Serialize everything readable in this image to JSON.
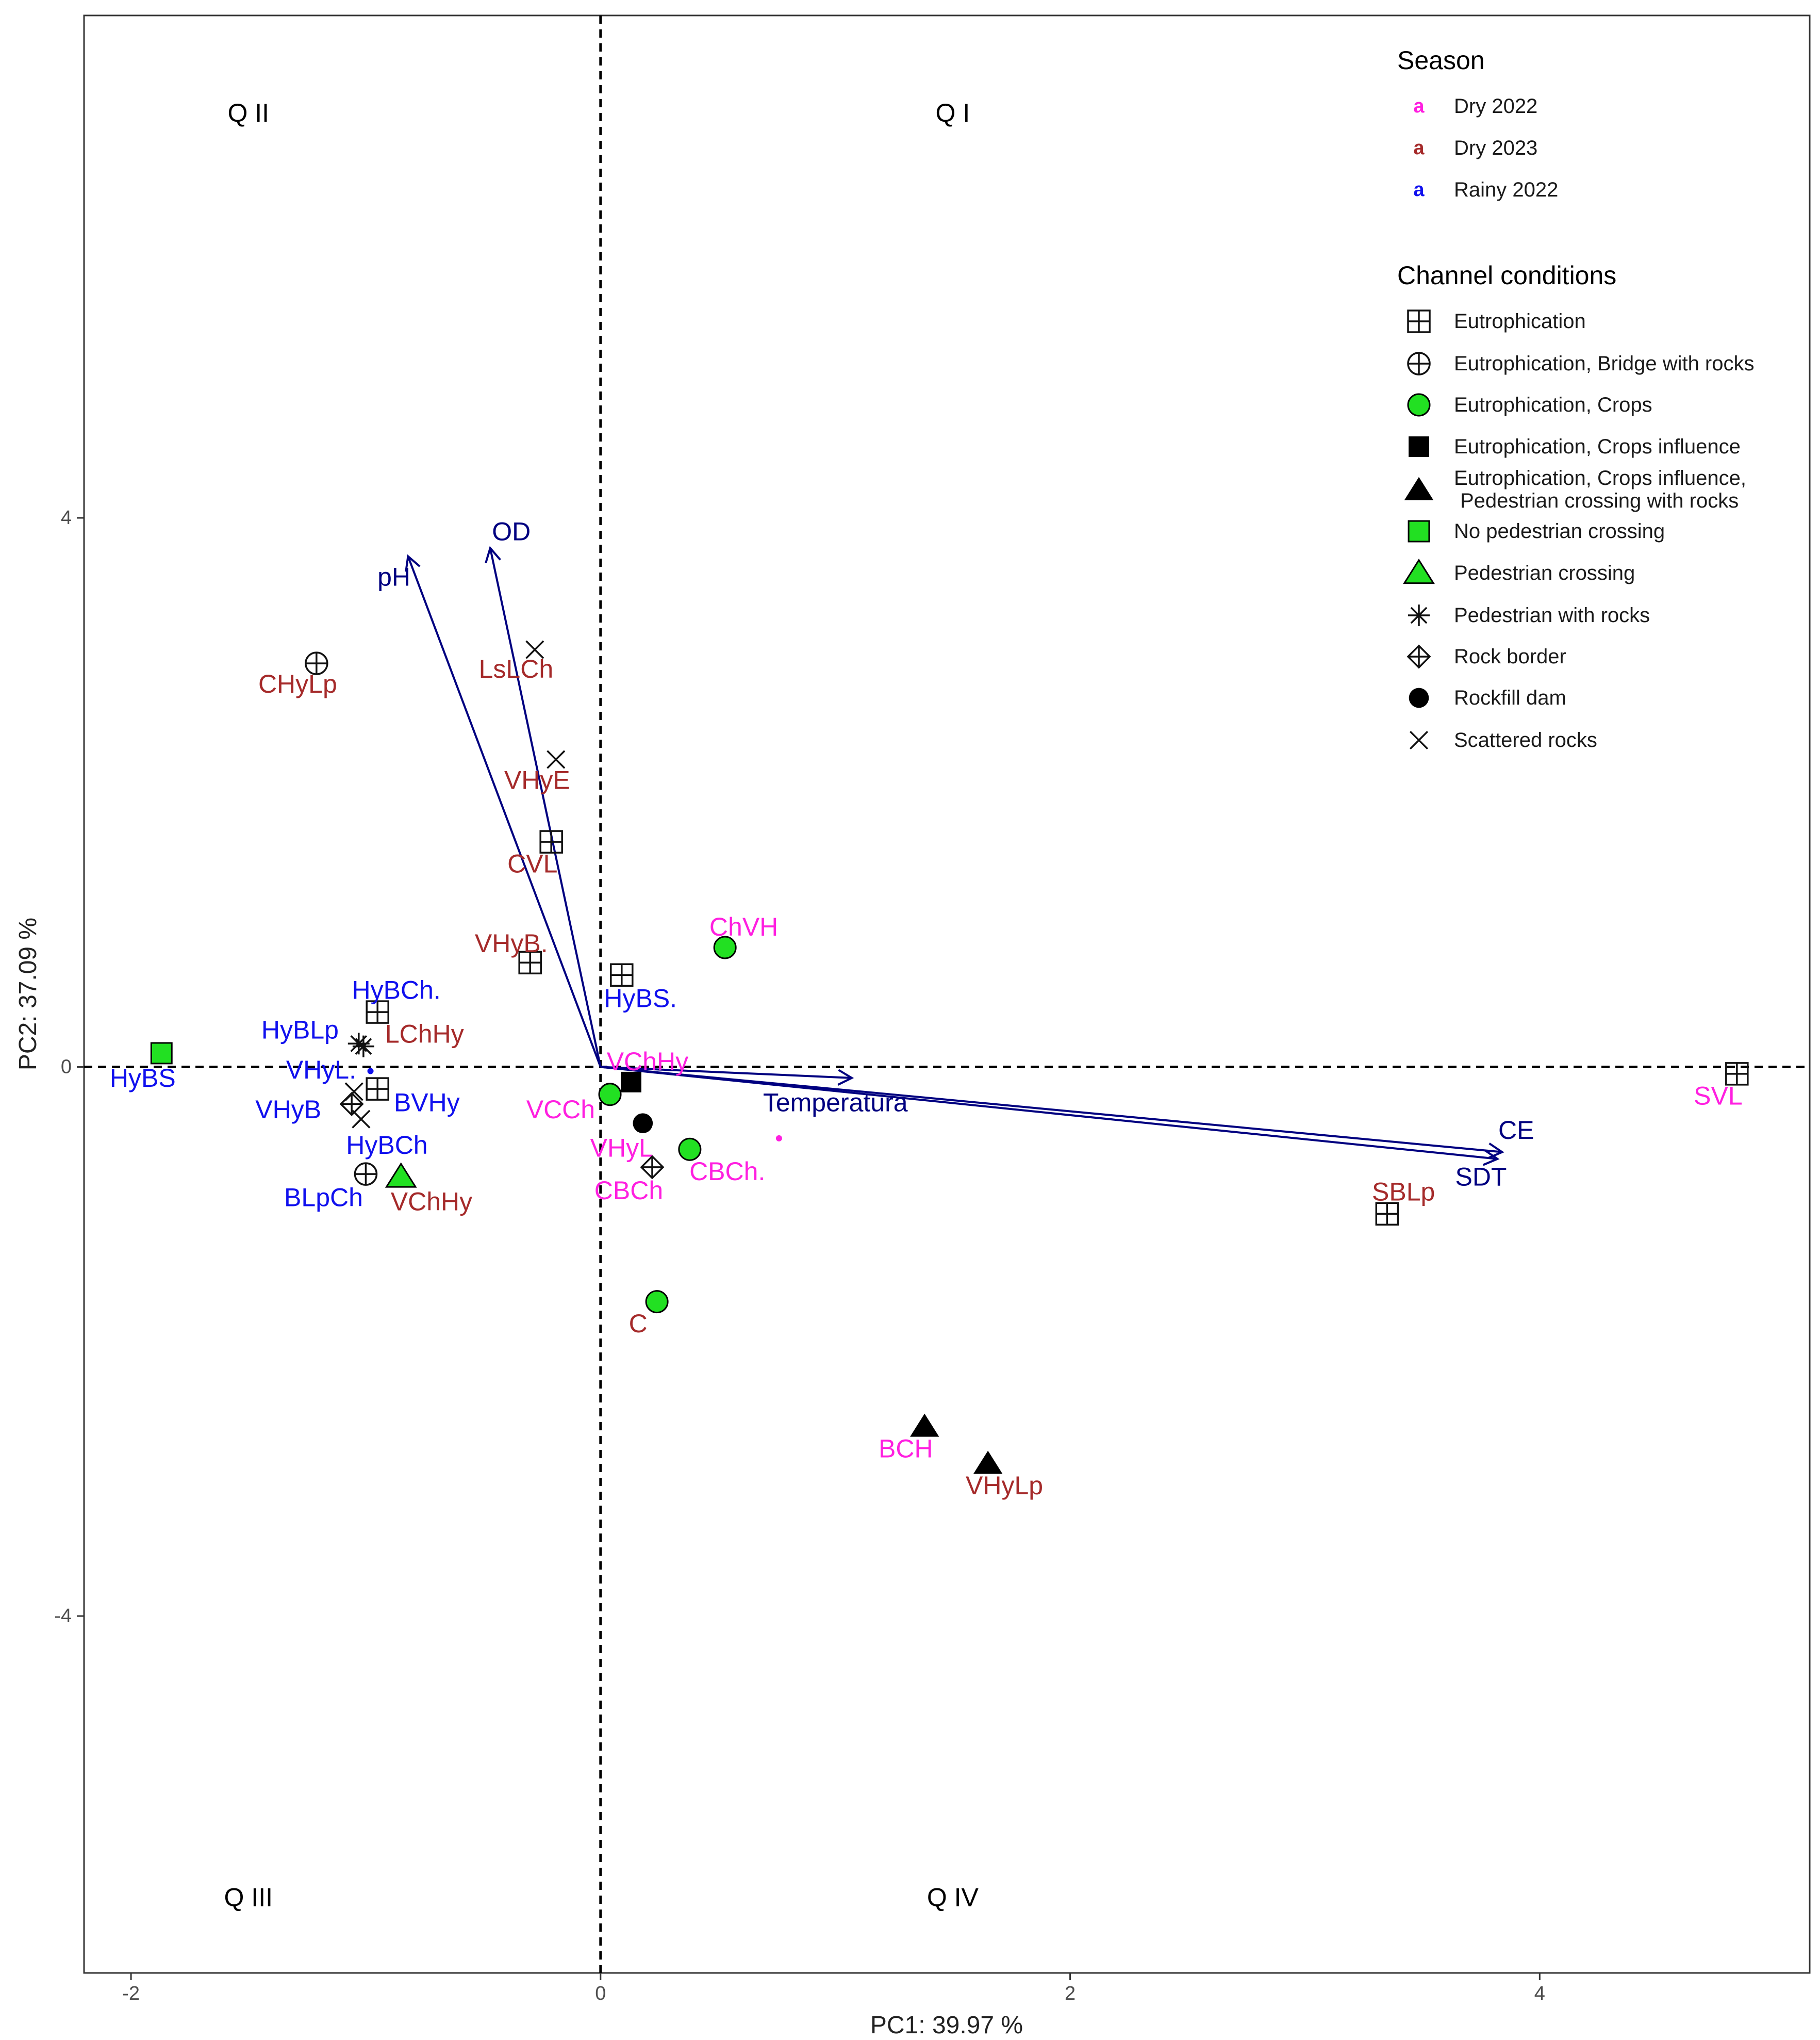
{
  "chart_data": {
    "type": "scatter",
    "subtype": "pca-biplot",
    "xlabel": "PC1: 39.97 %",
    "ylabel": "PC2: 37.09 %",
    "xlim": [
      -2.2,
      5.15
    ],
    "ylim": [
      -6.6,
      7.66
    ],
    "x_ticks": [
      -2,
      0,
      2,
      4
    ],
    "y_ticks": [
      -4,
      0,
      4
    ],
    "x_tick_labels": [
      "-2",
      "0",
      "2",
      "4"
    ],
    "y_tick_labels": [
      "-4",
      "0",
      "4"
    ],
    "grid": false,
    "reference_lines": {
      "x": 0,
      "y": 0,
      "style": "dashed"
    },
    "quadrants": [
      {
        "label": "Q I",
        "x": 1.5,
        "y": 6.95
      },
      {
        "label": "Q II",
        "x": -1.5,
        "y": 6.95
      },
      {
        "label": "Q III",
        "x": -1.5,
        "y": -6.05
      },
      {
        "label": "Q IV",
        "x": 1.5,
        "y": -6.05
      }
    ],
    "legend_position": "top-right",
    "season_legend": {
      "title": "Season",
      "glyph": "a",
      "entries": [
        {
          "name": "Dry 2022",
          "color": "#ff1fe0"
        },
        {
          "name": "Dry 2023",
          "color": "#a52a2a"
        },
        {
          "name": "Rainy 2022",
          "color": "#1010ee"
        }
      ]
    },
    "condition_legend": {
      "title": "Channel conditions",
      "entries": [
        {
          "name": "Eutrophication",
          "shape": "square-plus"
        },
        {
          "name": "Eutrophication, Bridge with rocks",
          "shape": "circle-plus"
        },
        {
          "name": "Eutrophication, Crops",
          "shape": "circle-green"
        },
        {
          "name": "Eutrophication, Crops influence",
          "shape": "square-filled"
        },
        {
          "name": "Eutrophication, Crops influence,",
          "name_line2": "Pedestrian crossing with rocks",
          "shape": "triangle-filled"
        },
        {
          "name": "No pedestrian crossing",
          "shape": "square-green"
        },
        {
          "name": "Pedestrian crossing",
          "shape": "triangle-green"
        },
        {
          "name": "Pedestrian with rocks",
          "shape": "asterisk"
        },
        {
          "name": "Rock border",
          "shape": "diamond-plus"
        },
        {
          "name": "Rockfill dam",
          "shape": "circle-filled"
        },
        {
          "name": "Scattered rocks",
          "shape": "cross"
        }
      ]
    },
    "loadings": [
      {
        "name": "pH",
        "x": -0.82,
        "y": 3.72,
        "label_x": -0.88,
        "label_y": 3.57
      },
      {
        "name": "OD",
        "x": -0.47,
        "y": 3.78,
        "label_x": -0.38,
        "label_y": 3.9
      },
      {
        "name": "Temperatura",
        "x": 1.07,
        "y": -0.08,
        "label_x": 1.0,
        "label_y": -0.26
      },
      {
        "name": "CE",
        "x": 3.84,
        "y": -0.62,
        "label_x": 3.9,
        "label_y": -0.46
      },
      {
        "name": "SDT",
        "x": 3.82,
        "y": -0.67,
        "label_x": 3.75,
        "label_y": -0.8
      }
    ],
    "points": [
      {
        "label": "CHyLp",
        "season": "Dry 2023",
        "condition": "Eutrophication, Bridge with rocks",
        "x": -1.21,
        "y": 2.94,
        "label_x": -1.29,
        "label_y": 2.79
      },
      {
        "label": "LsLCh",
        "season": "Dry 2023",
        "condition": "Scattered rocks",
        "x": -0.28,
        "y": 3.04,
        "label_x": -0.36,
        "label_y": 2.9
      },
      {
        "name": "",
        "label": "VHyE",
        "season": "Dry 2023",
        "condition": "Scattered rocks",
        "x": -0.19,
        "y": 2.24,
        "label_x": -0.27,
        "label_y": 2.09
      },
      {
        "label": "CVL",
        "season": "Dry 2023",
        "condition": "Eutrophication",
        "x": -0.21,
        "y": 1.64,
        "label_x": -0.29,
        "label_y": 1.48
      },
      {
        "label": "VHyB.",
        "season": "Dry 2023",
        "condition": "Eutrophication",
        "x": -0.3,
        "y": 0.76,
        "label_x": -0.38,
        "label_y": 0.9
      },
      {
        "label": "HyBS.",
        "season": "Rainy 2022",
        "condition": "Eutrophication",
        "x": 0.09,
        "y": 0.67,
        "label_x": 0.17,
        "label_y": 0.5
      },
      {
        "label": "ChVH",
        "season": "Dry 2022",
        "condition": "Eutrophication, Crops",
        "x": 0.53,
        "y": 0.87,
        "label_x": 0.61,
        "label_y": 1.02
      },
      {
        "label": "HyBCh.",
        "season": "Rainy 2022",
        "condition": "Eutrophication",
        "x": -0.95,
        "y": 0.4,
        "label_x": -0.87,
        "label_y": 0.56
      },
      {
        "label": "HyBLp",
        "season": "Rainy 2022",
        "condition": "Pedestrian with rocks",
        "x": -1.03,
        "y": 0.17,
        "label_x": -1.28,
        "label_y": 0.27
      },
      {
        "label": "LChHy",
        "season": "Dry 2023",
        "condition": "Pedestrian with rocks",
        "x": -1.01,
        "y": 0.15,
        "label_x": -0.75,
        "label_y": 0.24
      },
      {
        "label": "HyBS",
        "season": "Rainy 2022",
        "condition": "No pedestrian crossing",
        "x": -1.87,
        "y": 0.1,
        "label_x": -1.95,
        "label_y": -0.08
      },
      {
        "label": "VHyL.",
        "season": "Rainy 2022",
        "condition": "Scattered rocks",
        "x": -1.05,
        "y": -0.18,
        "label_x": -1.19,
        "label_y": -0.02
      },
      {
        "label": "BVHy",
        "season": "Rainy 2022",
        "condition": "Eutrophication",
        "x": -0.95,
        "y": -0.16,
        "label_x": -0.74,
        "label_y": -0.26
      },
      {
        "label": "VHyB",
        "season": "Rainy 2022",
        "condition": "Rock border",
        "x": -1.06,
        "y": -0.27,
        "label_x": -1.33,
        "label_y": -0.31
      },
      {
        "label": "HyBCh",
        "season": "Rainy 2022",
        "condition": "Scattered rocks",
        "x": -1.02,
        "y": -0.38,
        "label_x": -0.91,
        "label_y": -0.57
      },
      {
        "label": "BLpCh",
        "season": "Rainy 2022",
        "condition": "Eutrophication, Bridge with rocks",
        "x": -1.0,
        "y": -0.78,
        "label_x": -1.18,
        "label_y": -0.95
      },
      {
        "label": "VChHy",
        "season": "Dry 2023",
        "condition": "Pedestrian crossing",
        "x": -0.85,
        "y": -0.8,
        "label_x": -0.72,
        "label_y": -0.98
      },
      {
        "label": "VChHy",
        "season": "Dry 2022",
        "condition": "",
        "x": 0.02,
        "y": 0.0,
        "label_x": 0.2,
        "label_y": 0.04
      },
      {
        "label": "VCCh",
        "season": "Dry 2022",
        "condition": "Eutrophication, Crops",
        "x": 0.04,
        "y": -0.2,
        "label_x": -0.17,
        "label_y": -0.31
      },
      {
        "label": "",
        "season": "",
        "condition": "Eutrophication, Crops influence",
        "x": 0.13,
        "y": -0.11,
        "label_x": 0.13,
        "label_y": -0.11
      },
      {
        "label": "VHyL",
        "season": "Dry 2022",
        "condition": "Rockfill dam",
        "x": 0.18,
        "y": -0.41,
        "label_x": 0.09,
        "label_y": -0.59
      },
      {
        "label": "CBCh.",
        "season": "Dry 2022",
        "condition": "Eutrophication, Crops",
        "x": 0.38,
        "y": -0.6,
        "label_x": 0.54,
        "label_y": -0.76
      },
      {
        "label": "CBCh",
        "season": "Dry 2022",
        "condition": "Rock border",
        "x": 0.22,
        "y": -0.73,
        "label_x": 0.12,
        "label_y": -0.9
      },
      {
        "label": "SVL",
        "season": "Dry 2022",
        "condition": "Eutrophication",
        "x": 4.84,
        "y": -0.05,
        "label_x": 4.76,
        "label_y": -0.21
      },
      {
        "label": "SBLp",
        "season": "Dry 2023",
        "condition": "Eutrophication",
        "x": 3.35,
        "y": -1.07,
        "label_x": 3.42,
        "label_y": -0.91
      },
      {
        "label": "C",
        "season": "Dry 2023",
        "condition": "Eutrophication, Crops",
        "x": 0.24,
        "y": -1.71,
        "label_x": 0.16,
        "label_y": -1.87
      },
      {
        "label": "BCH",
        "season": "Dry 2022",
        "condition": "Eutrophication, Crops influence, Pedestrian crossing with rocks",
        "x": 1.38,
        "y": -2.62,
        "label_x": 1.3,
        "label_y": -2.78
      },
      {
        "label": "VHyLp",
        "season": "Dry 2023",
        "condition": "Eutrophication, Crops influence, Pedestrian crossing with rocks",
        "x": 1.65,
        "y": -2.89,
        "label_x": 1.72,
        "label_y": -3.05
      }
    ],
    "small_dots": [
      {
        "season": "Dry 2022",
        "x": 0.76,
        "y": -0.52
      },
      {
        "season": "Rainy 2022",
        "x": -0.98,
        "y": -0.03
      }
    ]
  }
}
